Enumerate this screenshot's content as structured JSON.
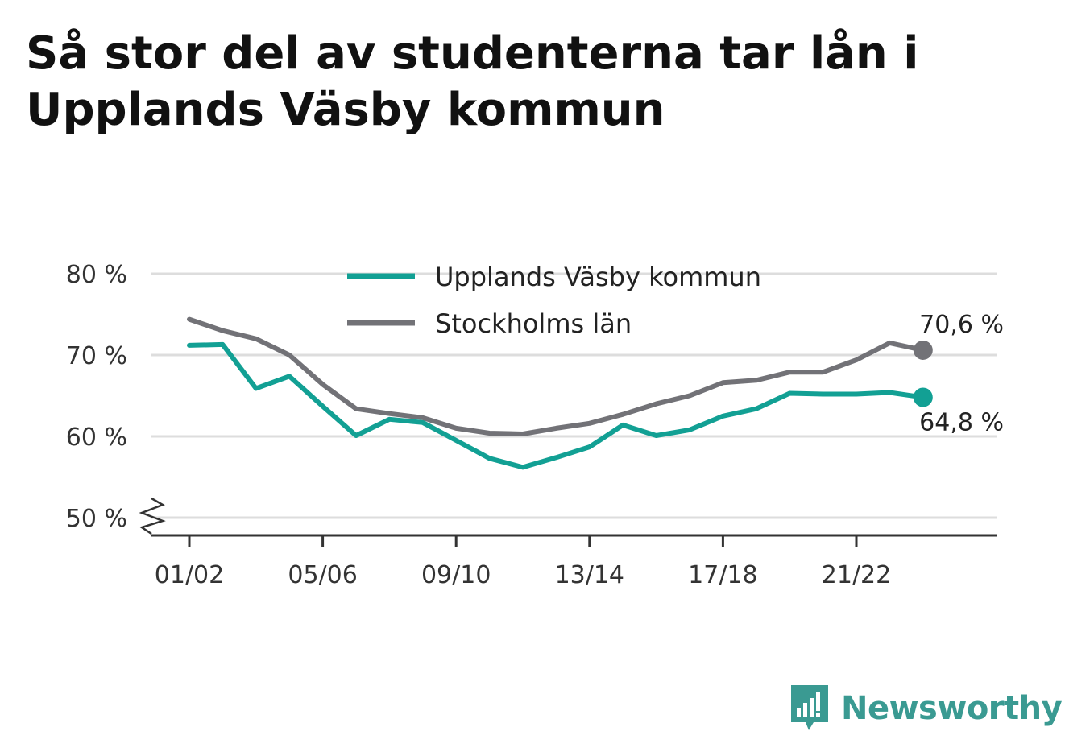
{
  "title": "Så stor del av studenterna tar lån i Upplands Väsby kommun",
  "brand": {
    "name": "Newsworthy",
    "icon": "bar-chart-speech-bubble-icon",
    "color": "#3a9a92"
  },
  "chart_data": {
    "type": "line",
    "title": "Så stor del av studenterna tar lån i Upplands Väsby kommun",
    "xlabel": "",
    "ylabel": "",
    "x": [
      "01/02",
      "02/03",
      "03/04",
      "04/05",
      "05/06",
      "06/07",
      "07/08",
      "08/09",
      "09/10",
      "10/11",
      "11/12",
      "12/13",
      "13/14",
      "14/15",
      "15/16",
      "16/17",
      "17/18",
      "18/19",
      "19/20",
      "20/21",
      "21/22",
      "22/23",
      "23/24"
    ],
    "x_tick_labels": [
      "01/02",
      "05/06",
      "09/10",
      "13/14",
      "17/18",
      "21/22"
    ],
    "y_ticks": [
      50,
      60,
      70,
      80
    ],
    "y_tick_labels": [
      "50 %",
      "60 %",
      "70 %",
      "80 %"
    ],
    "ylim": [
      48,
      82
    ],
    "y_axis_break": true,
    "grid": true,
    "legend_position": "top-center",
    "series": [
      {
        "name": "Upplands Väsby kommun",
        "color": "#12a094",
        "values": [
          71.2,
          71.3,
          65.9,
          67.4,
          63.7,
          60.1,
          62.1,
          61.7,
          59.5,
          57.3,
          56.2,
          57.4,
          58.7,
          61.4,
          60.1,
          60.8,
          62.5,
          63.4,
          65.3,
          65.2,
          65.2,
          65.4,
          64.8
        ],
        "end_label": "64,8 %"
      },
      {
        "name": "Stockholms län",
        "color": "#727277",
        "values": [
          74.4,
          73.0,
          72.0,
          70.0,
          66.4,
          63.4,
          62.8,
          62.3,
          61.0,
          60.4,
          60.3,
          61.0,
          61.6,
          62.7,
          64.0,
          65.0,
          66.6,
          66.9,
          67.9,
          67.9,
          69.4,
          71.5,
          70.6
        ],
        "end_label": "70,6 %"
      }
    ]
  }
}
